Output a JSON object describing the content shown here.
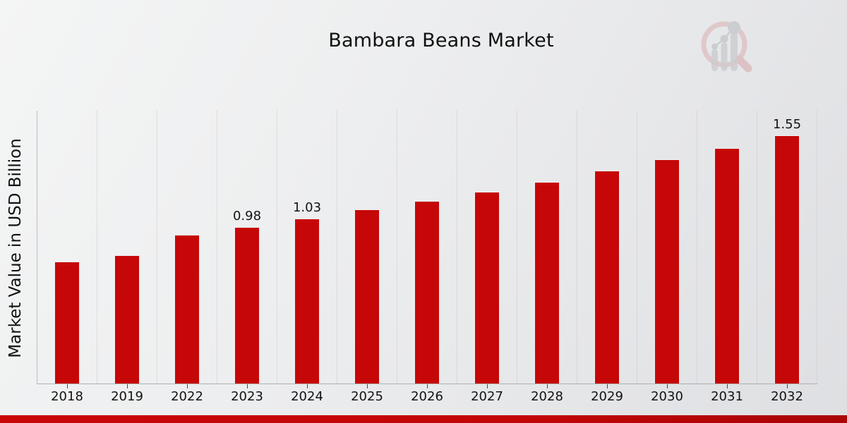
{
  "title": "Bambara Beans Market",
  "ylabel": "Market Value in USD Billion",
  "watermark_icon": "magnifier-bar-chart-logo",
  "footer": {
    "accent_color": "#c90507"
  },
  "chart_data": {
    "type": "bar",
    "title": "Bambara Beans Market",
    "xlabel": "",
    "ylabel": "Market Value in USD Billion",
    "categories": [
      "2018",
      "2019",
      "2022",
      "2023",
      "2024",
      "2025",
      "2026",
      "2027",
      "2028",
      "2029",
      "2030",
      "2031",
      "2032"
    ],
    "values": [
      0.76,
      0.8,
      0.93,
      0.98,
      1.03,
      1.09,
      1.14,
      1.2,
      1.26,
      1.33,
      1.4,
      1.47,
      1.55
    ],
    "labeled_points": {
      "2023": "0.98",
      "2024": "1.03",
      "2032": "1.55"
    },
    "bar_color": "#c60708",
    "ylim": [
      0,
      1.71
    ],
    "grid": "vertical-dotted",
    "legend": "none"
  }
}
